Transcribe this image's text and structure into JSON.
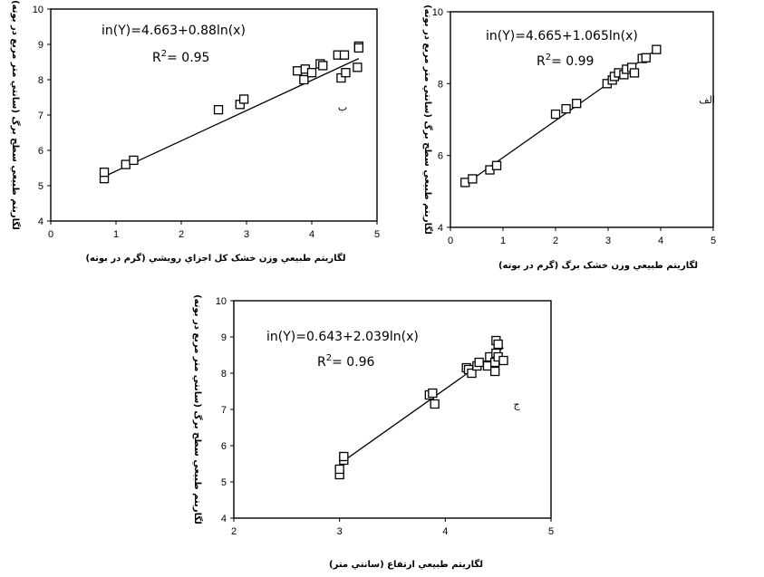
{
  "chart_data": [
    {
      "type": "scatter",
      "panel_label": "ب",
      "equation": "in(Y)=4.663+0.88ln(x)",
      "r2_label": "R",
      "r2_sup": "2",
      "r2_value": "= 0.95",
      "xlabel": "لگاريتم طبيعي وزن خشک کل اجزاي رويشي (گرم در بوته)",
      "ylabel": "لگاريتم طبيعي سطح برگ (سانتي متر مربع در بوته)",
      "xlim": [
        0,
        5
      ],
      "ylim": [
        4,
        10
      ],
      "xticks": [
        0,
        1,
        2,
        3,
        4,
        5
      ],
      "yticks": [
        4,
        5,
        6,
        7,
        8,
        9,
        10
      ],
      "x": [
        0.82,
        0.82,
        1.15,
        1.27,
        2.57,
        2.9,
        2.96,
        3.78,
        3.88,
        3.9,
        4.0,
        4.13,
        4.17,
        4.4,
        4.45,
        4.5,
        4.52,
        4.7,
        4.72,
        4.72
      ],
      "y": [
        5.2,
        5.38,
        5.6,
        5.72,
        7.15,
        7.3,
        7.45,
        8.25,
        8.0,
        8.3,
        8.2,
        8.45,
        8.4,
        8.7,
        8.05,
        8.7,
        8.2,
        8.35,
        8.95,
        8.9
      ],
      "trendline": {
        "x": [
          0.82,
          4.72
        ],
        "y": [
          5.26,
          8.6
        ]
      }
    },
    {
      "type": "scatter",
      "panel_label": "الف",
      "equation": "in(Y)=4.665+1.065ln(x)",
      "r2_label": "R",
      "r2_sup": "2",
      "r2_value": "= 0.99",
      "xlabel": "لگاريتم طبيعي وزن خشک برگ (گرم در بوته)",
      "ylabel": "لگاريتم طبيعي سطح برگ (سانتي متر مربع در بوته)",
      "xlim": [
        0,
        5
      ],
      "ylim": [
        4,
        10
      ],
      "xticks": [
        0,
        1,
        2,
        3,
        4,
        5
      ],
      "yticks": [
        4,
        6,
        8,
        10
      ],
      "x": [
        0.28,
        0.42,
        0.75,
        0.88,
        2.0,
        2.2,
        2.4,
        2.98,
        3.08,
        3.12,
        3.2,
        3.3,
        3.35,
        3.45,
        3.5,
        3.65,
        3.72,
        3.92
      ],
      "y": [
        5.25,
        5.35,
        5.6,
        5.72,
        7.15,
        7.3,
        7.45,
        8.0,
        8.1,
        8.2,
        8.3,
        8.25,
        8.4,
        8.45,
        8.3,
        8.7,
        8.72,
        8.95
      ],
      "trendline": {
        "x": [
          0.28,
          3.92
        ],
        "y": [
          5.2,
          8.95
        ]
      }
    },
    {
      "type": "scatter",
      "panel_label": "ج",
      "equation": "in(Y)=0.643+2.039ln(x)",
      "r2_label": "R",
      "r2_sup": "2",
      "r2_value": "= 0.96",
      "xlabel": "لگاريتم طبيعي ارتفاع (سانتي متر)",
      "ylabel": "لگاريتم طبيعي سطح برگ (سانتي متر مربع در بوته)",
      "xlim": [
        2,
        5
      ],
      "ylim": [
        4,
        10
      ],
      "xticks": [
        2,
        3,
        4,
        5
      ],
      "yticks": [
        4,
        5,
        6,
        7,
        8,
        9,
        10
      ],
      "x": [
        3.0,
        3.0,
        3.04,
        3.04,
        3.85,
        3.88,
        3.9,
        4.2,
        4.22,
        4.25,
        4.3,
        4.32,
        4.4,
        4.42,
        4.47,
        4.47,
        4.48,
        4.48,
        4.5,
        4.5,
        4.55
      ],
      "y": [
        5.2,
        5.35,
        5.6,
        5.7,
        7.4,
        7.45,
        7.15,
        8.15,
        8.1,
        8.0,
        8.2,
        8.3,
        8.2,
        8.45,
        8.05,
        8.3,
        8.55,
        8.9,
        8.8,
        8.45,
        8.35
      ],
      "trendline": {
        "x": [
          3.0,
          4.55
        ],
        "y": [
          5.5,
          8.7
        ]
      }
    }
  ]
}
